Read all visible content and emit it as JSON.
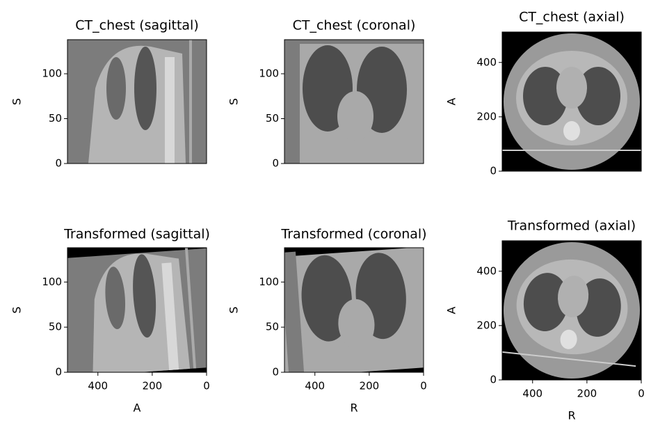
{
  "chart_data": [
    {
      "type": "image",
      "title": "CT_chest (sagittal)",
      "ylabel": "S",
      "xlim": [
        512,
        0
      ],
      "ylim": [
        0,
        138
      ],
      "yticks": [
        0,
        50,
        100
      ]
    },
    {
      "type": "image",
      "title": "CT_chest (coronal)",
      "ylabel": "S",
      "xlim": [
        512,
        0
      ],
      "ylim": [
        0,
        138
      ],
      "yticks": [
        0,
        50,
        100
      ]
    },
    {
      "type": "image",
      "title": "CT_chest (axial)",
      "ylabel": "A",
      "xlim": [
        512,
        0
      ],
      "ylim": [
        0,
        512
      ],
      "yticks": [
        0,
        200,
        400
      ]
    },
    {
      "type": "image",
      "title": "Transformed (sagittal)",
      "xlabel": "A",
      "ylabel": "S",
      "xlim": [
        512,
        0
      ],
      "ylim": [
        0,
        138
      ],
      "xticks": [
        400,
        200,
        0
      ],
      "yticks": [
        0,
        50,
        100
      ]
    },
    {
      "type": "image",
      "title": "Transformed (coronal)",
      "xlabel": "R",
      "ylabel": "S",
      "xlim": [
        512,
        0
      ],
      "ylim": [
        0,
        138
      ],
      "xticks": [
        400,
        200,
        0
      ],
      "yticks": [
        0,
        50,
        100
      ]
    },
    {
      "type": "image",
      "title": "Transformed (axial)",
      "xlabel": "R",
      "ylabel": "A",
      "xlim": [
        512,
        0
      ],
      "ylim": [
        0,
        512
      ],
      "xticks": [
        400,
        200,
        0
      ],
      "yticks": [
        0,
        200,
        400
      ]
    }
  ]
}
